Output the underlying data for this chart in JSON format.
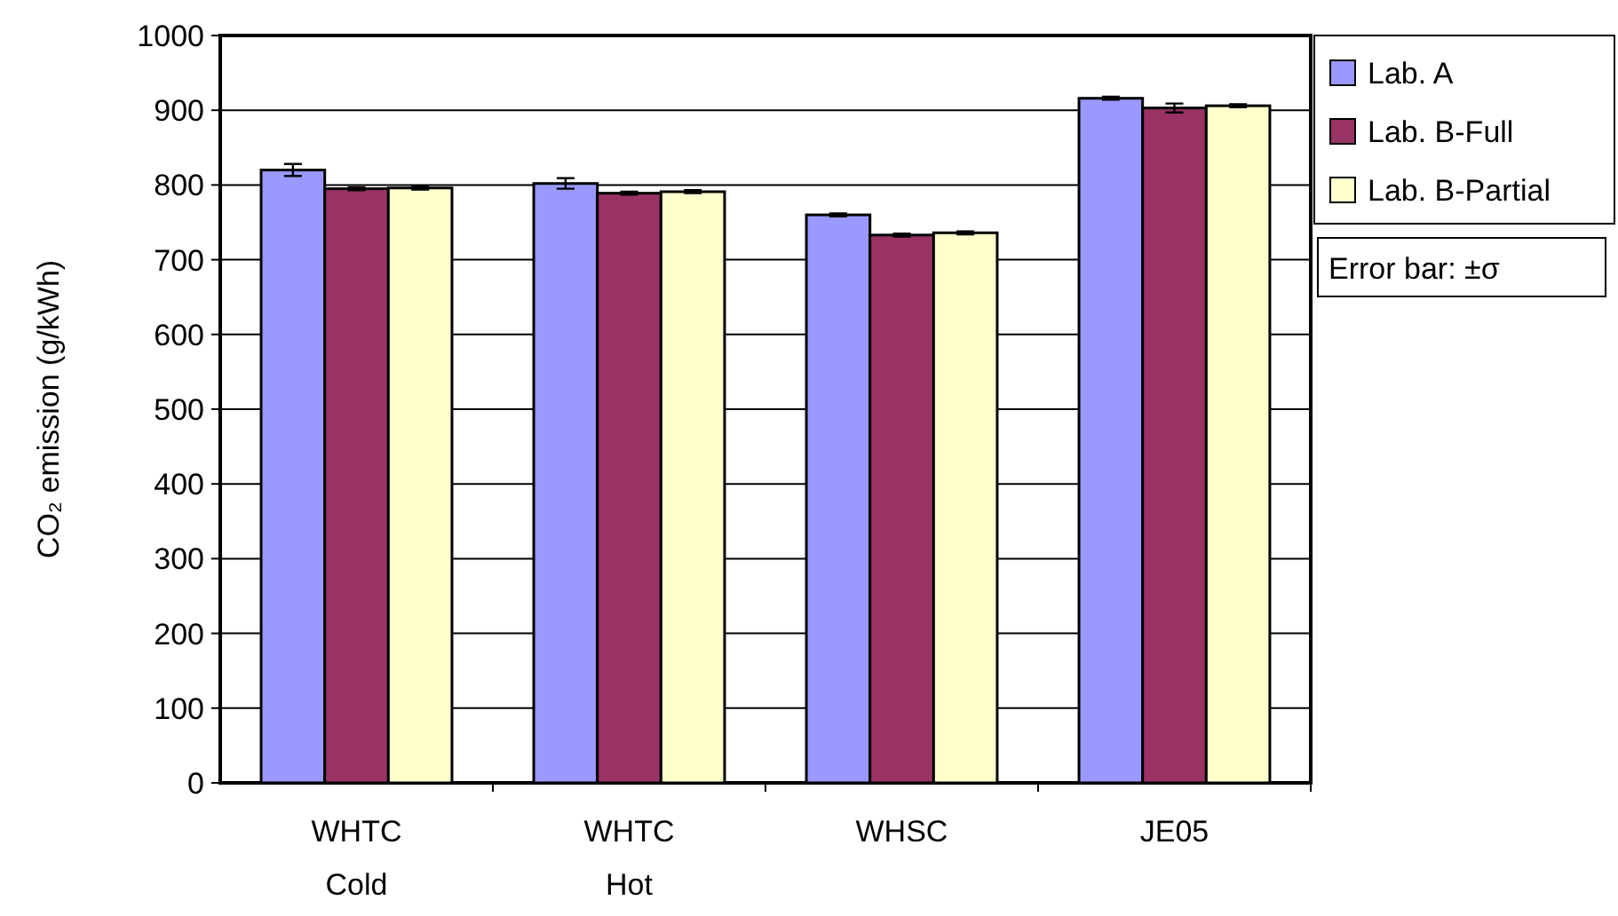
{
  "chart_data": {
    "type": "bar",
    "ylabel": "CO₂ emission (g/kWh)",
    "categories": [
      "WHTC\nCold",
      "WHTC\nHot",
      "WHSC",
      "JE05"
    ],
    "series": [
      {
        "name": "Lab. A",
        "color": "#9999ff",
        "values": [
          820,
          802,
          760,
          916
        ],
        "errors": [
          8,
          7,
          2,
          2
        ]
      },
      {
        "name": "Lab. B-Full",
        "color": "#993366",
        "values": [
          795,
          789,
          733,
          903
        ],
        "errors": [
          2,
          2,
          2,
          6
        ]
      },
      {
        "name": "Lab. B-Partial",
        "color": "#ffffcc",
        "values": [
          796,
          791,
          736,
          906
        ],
        "errors": [
          2,
          2,
          2,
          2
        ]
      }
    ],
    "ylim": [
      0,
      1000
    ],
    "yticks": [
      0,
      100,
      200,
      300,
      400,
      500,
      600,
      700,
      800,
      900,
      1000
    ],
    "grid": "y",
    "legend": "top right",
    "annotations": [
      "Error bar: ±σ"
    ]
  }
}
